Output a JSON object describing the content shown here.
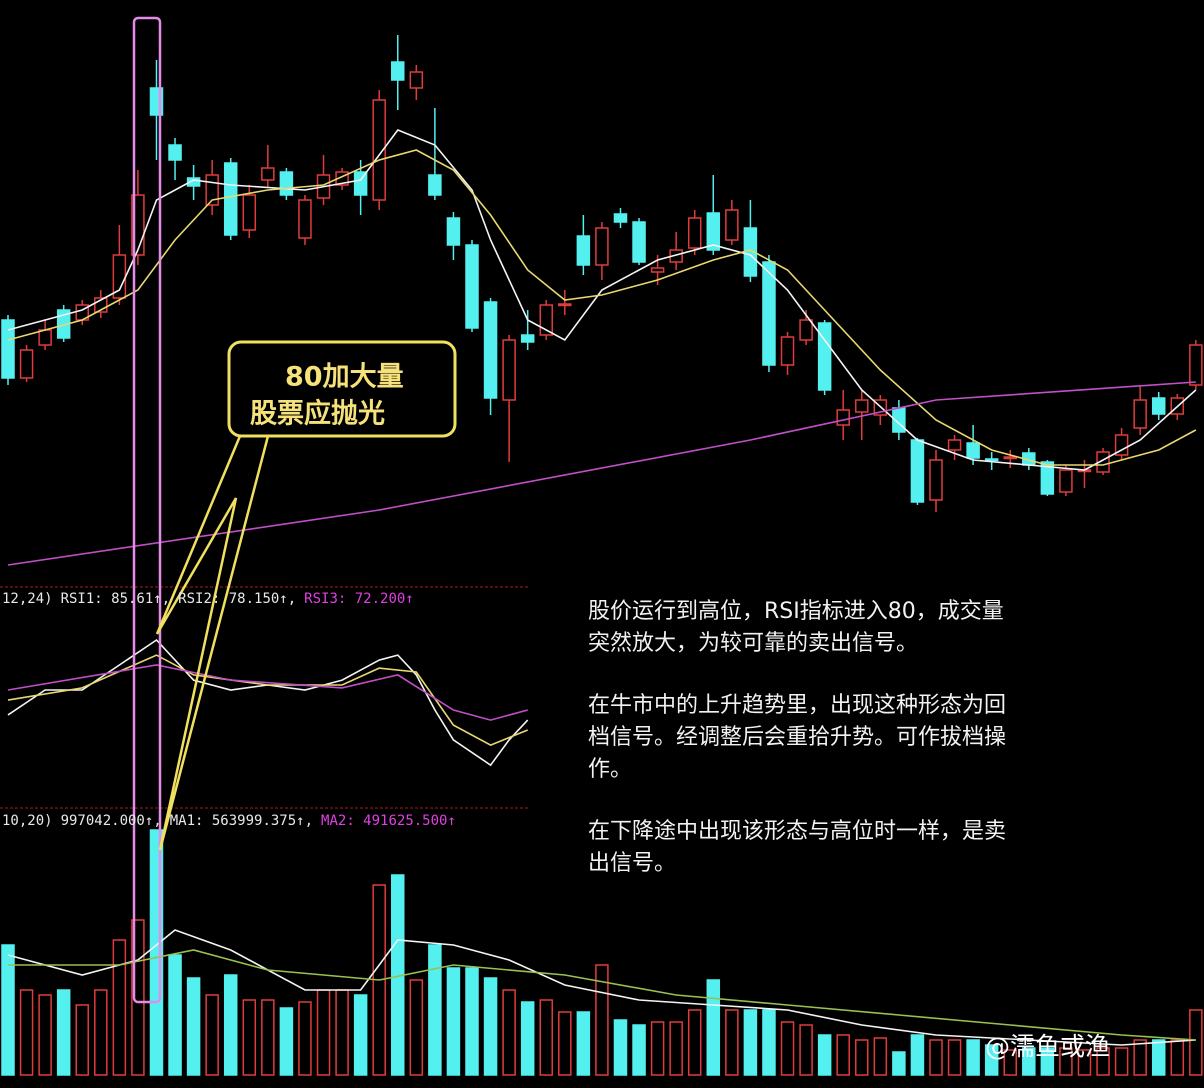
{
  "chart_data": {
    "type": "candlestick",
    "up_color": "#e03c3c",
    "down_color": "#54f0f0",
    "ylim": [
      20,
      600
    ],
    "ohlc": [
      [
        280,
        285,
        215,
        222
      ],
      [
        222,
        255,
        218,
        250
      ],
      [
        255,
        280,
        250,
        270
      ],
      [
        290,
        295,
        258,
        262
      ],
      [
        280,
        300,
        275,
        295
      ],
      [
        288,
        310,
        282,
        302
      ],
      [
        302,
        375,
        295,
        345
      ],
      [
        345,
        430,
        335,
        405
      ],
      [
        512,
        540,
        440,
        485
      ],
      [
        455,
        462,
        420,
        440
      ],
      [
        422,
        435,
        400,
        414
      ],
      [
        395,
        440,
        385,
        425
      ],
      [
        437,
        442,
        360,
        365
      ],
      [
        370,
        415,
        362,
        405
      ],
      [
        420,
        455,
        412,
        432
      ],
      [
        428,
        432,
        400,
        405
      ],
      [
        362,
        405,
        355,
        400
      ],
      [
        402,
        445,
        395,
        425
      ],
      [
        415,
        432,
        410,
        428
      ],
      [
        428,
        440,
        385,
        405
      ],
      [
        400,
        510,
        390,
        500
      ],
      [
        538,
        565,
        490,
        520
      ],
      [
        512,
        535,
        500,
        528
      ],
      [
        425,
        492,
        400,
        405
      ],
      [
        382,
        388,
        340,
        355
      ],
      [
        355,
        360,
        268,
        272
      ],
      [
        298,
        302,
        185,
        202
      ],
      [
        200,
        265,
        138,
        260
      ],
      [
        265,
        290,
        250,
        258
      ],
      [
        265,
        300,
        260,
        295
      ],
      [
        295,
        310,
        285,
        296
      ],
      [
        364,
        385,
        325,
        335
      ],
      [
        335,
        378,
        320,
        372
      ],
      [
        386,
        392,
        372,
        378
      ],
      [
        378,
        382,
        335,
        338
      ],
      [
        328,
        345,
        315,
        332
      ],
      [
        338,
        368,
        330,
        350
      ],
      [
        352,
        390,
        345,
        382
      ],
      [
        387,
        425,
        345,
        350
      ],
      [
        360,
        400,
        355,
        390
      ],
      [
        372,
        400,
        318,
        324
      ],
      [
        338,
        345,
        228,
        235
      ],
      [
        235,
        268,
        225,
        263
      ],
      [
        260,
        290,
        255,
        280
      ],
      [
        277,
        280,
        205,
        210
      ],
      [
        175,
        210,
        160,
        190
      ],
      [
        188,
        210,
        160,
        200
      ],
      [
        185,
        205,
        175,
        200
      ],
      [
        192,
        200,
        160,
        168
      ],
      [
        160,
        162,
        95,
        98
      ],
      [
        100,
        150,
        88,
        140
      ],
      [
        150,
        165,
        140,
        160
      ],
      [
        157,
        175,
        135,
        142
      ],
      [
        141,
        148,
        130,
        140
      ],
      [
        142,
        150,
        132,
        143
      ],
      [
        147,
        152,
        130,
        135
      ],
      [
        138,
        140,
        104,
        106
      ],
      [
        108,
        135,
        104,
        130
      ],
      [
        129,
        140,
        112,
        130
      ],
      [
        128,
        152,
        125,
        148
      ],
      [
        145,
        172,
        140,
        165
      ],
      [
        172,
        215,
        165,
        200
      ],
      [
        202,
        208,
        180,
        186
      ],
      [
        186,
        206,
        180,
        202
      ],
      [
        215,
        260,
        210,
        255
      ]
    ],
    "ma": [
      {
        "color": "#f4f4f4",
        "x": [
          0,
          4,
          6,
          7,
          8,
          10,
          12,
          16,
          19,
          21,
          23,
          25,
          26,
          28,
          30,
          32,
          35,
          38,
          40,
          42,
          44,
          46,
          49,
          52,
          55,
          58,
          61,
          64
        ],
        "values": [
          270,
          290,
          310,
          350,
          400,
          420,
          415,
          410,
          420,
          470,
          455,
          410,
          360,
          280,
          260,
          310,
          340,
          355,
          345,
          310,
          260,
          210,
          160,
          140,
          135,
          130,
          160,
          210
        ]
      },
      {
        "color": "#e8d870",
        "x": [
          0,
          4,
          7,
          9,
          11,
          14,
          17,
          20,
          22,
          24,
          26,
          28,
          30,
          32,
          35,
          38,
          40,
          42,
          44,
          47,
          50,
          53,
          56,
          59,
          62,
          64
        ],
        "values": [
          260,
          280,
          310,
          360,
          400,
          410,
          415,
          440,
          450,
          430,
          385,
          330,
          300,
          305,
          320,
          340,
          350,
          330,
          290,
          230,
          180,
          150,
          135,
          135,
          150,
          170
        ]
      },
      {
        "color": "#c050c8",
        "x": [
          0,
          20,
          40,
          50,
          64
        ],
        "values": [
          35,
          90,
          160,
          200,
          218
        ]
      }
    ],
    "rsi": {
      "header": [
        "12,24)",
        "RSI1: 85.61↑,",
        "RSI2: 78.150↑,",
        "RSI3: 72.200↑"
      ],
      "header_colors": [
        "#e8e8e8",
        "#e8e8e8",
        "#e8e8e8",
        "#e040e0"
      ],
      "ylim": [
        0,
        100
      ],
      "series": [
        {
          "color": "#f4f4f4",
          "x": [
            0,
            2,
            4,
            6,
            8,
            10,
            12,
            14,
            16,
            18,
            20,
            21,
            22,
            23,
            24,
            26,
            27,
            28
          ],
          "values": [
            55.8,
            65.4,
            65.4,
            75,
            84.6,
            69.2,
            65.4,
            67.3,
            65.4,
            69.2,
            76.9,
            78.8,
            71.2,
            57.7,
            46.2,
            36.5,
            46.2,
            53.8
          ]
        },
        {
          "color": "#e8d870",
          "x": [
            0,
            4,
            8,
            10,
            14,
            18,
            20,
            22,
            24,
            26,
            28
          ],
          "values": [
            61.5,
            66.2,
            78.8,
            71.2,
            67.3,
            67.3,
            73.8,
            72.3,
            51.9,
            44.2,
            50
          ]
        },
        {
          "color": "#c050c8",
          "x": [
            0,
            8,
            12,
            18,
            21,
            24,
            26,
            28
          ],
          "values": [
            65.4,
            75,
            69.2,
            66.2,
            71.2,
            57.7,
            53.8,
            57.7
          ]
        }
      ]
    },
    "volume": {
      "header": [
        "10,20)",
        "997042.000↑,",
        "MA1: 563999.375↑,",
        "MA2: 491625.500↑"
      ],
      "header_colors": [
        "#e8e8e8",
        "#e8e8e8",
        "#e8e8e8",
        "#e040e0"
      ],
      "ylim": [
        0,
        260
      ],
      "values": [
        130,
        85,
        80,
        85,
        70,
        85,
        135,
        155,
        245,
        120,
        97,
        80,
        100,
        75,
        75,
        67,
        73,
        85,
        85,
        80,
        190,
        200,
        95,
        130,
        107,
        107,
        97,
        85,
        73,
        75,
        63,
        63,
        110,
        55,
        50,
        53,
        53,
        65,
        95,
        65,
        65,
        65,
        53,
        50,
        40,
        40,
        35,
        37,
        23,
        40,
        35,
        35,
        35,
        30,
        25,
        27,
        27,
        27,
        25,
        27,
        27,
        35,
        35,
        35,
        65
      ],
      "ma": [
        {
          "color": "#f4f4f4",
          "x": [
            0,
            4,
            7,
            9,
            12,
            16,
            19,
            21,
            24,
            27,
            30,
            34,
            38,
            42,
            46,
            50,
            55,
            60,
            64
          ],
          "values": [
            120,
            100,
            115,
            145,
            125,
            85,
            85,
            135,
            130,
            115,
            90,
            75,
            70,
            65,
            50,
            40,
            35,
            30,
            35
          ]
        },
        {
          "color": "#9ac050",
          "x": [
            0,
            6,
            10,
            14,
            20,
            24,
            30,
            36,
            42,
            48,
            54,
            60,
            64
          ],
          "values": [
            110,
            110,
            125,
            105,
            95,
            110,
            100,
            80,
            70,
            60,
            50,
            40,
            35
          ]
        }
      ]
    },
    "callout": [
      "80加大量",
      "股票应抛光"
    ],
    "notes": [
      [
        "股价运行到高位，RSI指标进入80，成交量",
        "突然放大，为较可靠的卖出信号。"
      ],
      [
        "在牛市中的上升趋势里，出现这种形态为回",
        "档信号。经调整后会重拾升势。可作拔档操",
        "作。"
      ],
      [
        "在下降途中出现该形态与高位时一样，是卖",
        "出信号。"
      ]
    ]
  },
  "watermark": "@濡鱼或渔"
}
